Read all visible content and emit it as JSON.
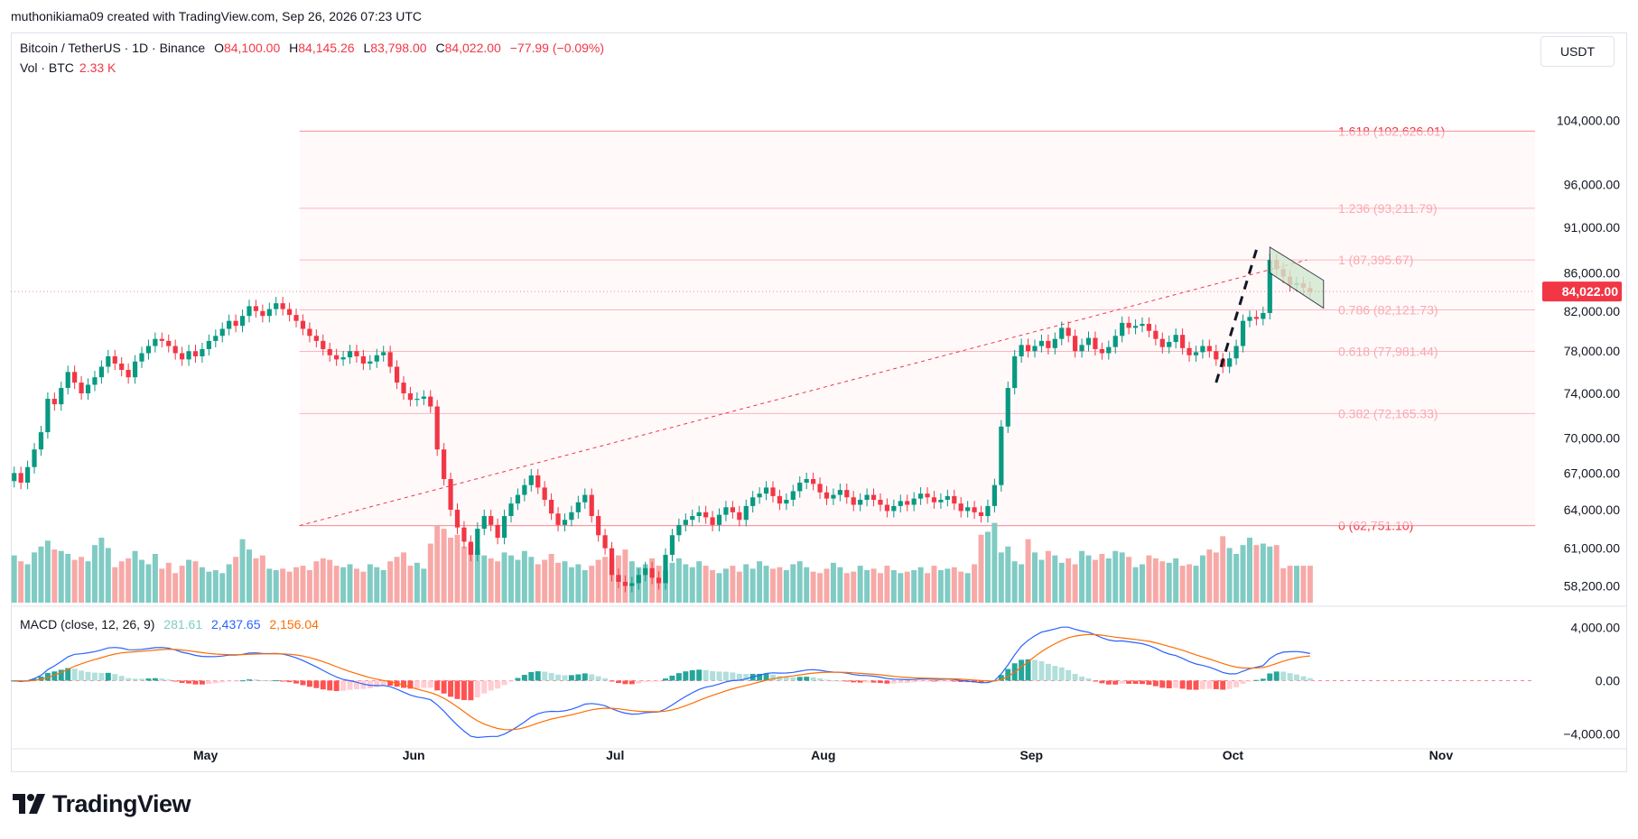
{
  "header": {
    "credit": "muthonikiama09 created with TradingView.com, Sep 26, 2026 07:23 UTC"
  },
  "legend": {
    "symbol": "Bitcoin / TetherUS · 1D · Binance",
    "o_label": "O",
    "o_value": "84,100.00",
    "h_label": "H",
    "h_value": "84,145.26",
    "l_label": "L",
    "l_value": "83,798.00",
    "c_label": "C",
    "c_value": "84,022.00",
    "change": "−77.99 (−0.09%)",
    "vol_label": "Vol · BTC",
    "vol_value": "2.33 K"
  },
  "macd_legend": {
    "title": "MACD (close, 12, 26, 9)",
    "hist": "281.61",
    "macd": "2,437.65",
    "signal": "2,156.04"
  },
  "currency_button": "USDT",
  "logo_text": "TradingView",
  "colors": {
    "up": "#089981",
    "down": "#f23645",
    "up_vol": "#80cbc4",
    "down_vol": "#f7a9a7",
    "fib": "#f23645",
    "macd": "#2962ff",
    "signal": "#ff6d00",
    "channel": "#d1ead0"
  },
  "chart_data": [
    {
      "type": "candlestick",
      "title": "Bitcoin / TetherUS · 1D · Binance",
      "x_tick_labels": [
        "May",
        "Jun",
        "Jul",
        "Aug",
        "Sep",
        "Oct",
        "Nov"
      ],
      "y_tick_labels": [
        "104,000.00",
        "96,000.00",
        "91,000.00",
        "86,000.00",
        "82,000.00",
        "78,000.00",
        "74,000.00",
        "70,000.00",
        "67,000.00",
        "64,000.00",
        "61,000.00",
        "58,200.00"
      ],
      "y_scale": "log",
      "ylim": [
        57000,
        108000
      ],
      "last_price_label": "84,022.00",
      "last_price": 84022,
      "fib_levels": [
        {
          "ratio": "0",
          "price": 62751.1,
          "label": "0 (62,751.10)"
        },
        {
          "ratio": "0.382",
          "price": 72165.33,
          "label": "0.382 (72,165.33)"
        },
        {
          "ratio": "0.618",
          "price": 77981.44,
          "label": "0.618 (77,981.44)"
        },
        {
          "ratio": "0.786",
          "price": 82121.73,
          "label": "0.786 (82,121.73)"
        },
        {
          "ratio": "1",
          "price": 87395.67,
          "label": "1 (87,395.67)"
        },
        {
          "ratio": "1.236",
          "price": 93211.79,
          "label": "1.236 (93,211.79)"
        },
        {
          "ratio": "1.618",
          "price": 102626.01,
          "label": "1.618 (102,626.01)"
        }
      ],
      "trendline": {
        "from": {
          "date": "2026-05-15",
          "price": 62751
        },
        "to": {
          "date": "2026-10-12",
          "price": 87396
        }
      },
      "closes": [
        67000,
        66200,
        67500,
        69000,
        70500,
        73500,
        73000,
        74500,
        76000,
        75000,
        74000,
        74800,
        75500,
        76500,
        77500,
        76800,
        76200,
        75500,
        77000,
        77800,
        78500,
        79200,
        79000,
        78500,
        77800,
        77200,
        78000,
        77500,
        78200,
        79000,
        79500,
        80200,
        81000,
        80500,
        81500,
        82500,
        82000,
        81500,
        82200,
        82800,
        82200,
        81600,
        81000,
        80200,
        79500,
        79000,
        78200,
        77600,
        77200,
        77400,
        78000,
        77500,
        76800,
        77000,
        77600,
        77900,
        76500,
        75000,
        74000,
        73400,
        73500,
        73700,
        72800,
        69000,
        66500,
        64000,
        62600,
        61500,
        60500,
        62500,
        63500,
        62800,
        61800,
        63500,
        64500,
        65200,
        66000,
        66800,
        65800,
        64800,
        63700,
        62800,
        63200,
        63800,
        64600,
        65200,
        63500,
        62000,
        61000,
        59000,
        58500,
        58200,
        58400,
        59000,
        59500,
        58800,
        58400,
        60500,
        62000,
        62800,
        63200,
        63500,
        63800,
        63400,
        62800,
        63600,
        64200,
        63800,
        63200,
        64300,
        65000,
        65300,
        65800,
        65100,
        64500,
        64800,
        65500,
        66200,
        66500,
        66100,
        65400,
        64900,
        65200,
        65600,
        65000,
        64400,
        64800,
        65200,
        64800,
        64400,
        63900,
        64300,
        64700,
        64400,
        64900,
        65300,
        65000,
        64600,
        64800,
        65100,
        64500,
        63900,
        64200,
        63800,
        63500,
        64300,
        66000,
        71000,
        74500,
        77500,
        78600,
        78000,
        78500,
        79000,
        78300,
        79200,
        80300,
        79500,
        78000,
        78600,
        79300,
        78200,
        77800,
        78400,
        79500,
        80800,
        80300,
        80500,
        80700,
        80000,
        79200,
        78400,
        78900,
        79600,
        78300,
        77600,
        77900,
        78500,
        78000,
        77200,
        76500,
        77300,
        78500,
        81000,
        81400,
        81200,
        81800,
        87400,
        86400,
        85600,
        84700,
        84900,
        84400,
        84022
      ],
      "volumes_K": [
        3.2,
        2.8,
        2.6,
        3.4,
        3.8,
        4.2,
        3.6,
        3.5,
        3.3,
        2.9,
        3.1,
        2.8,
        3.9,
        4.4,
        3.7,
        2.4,
        2.8,
        3.0,
        3.5,
        2.9,
        2.6,
        3.3,
        2.3,
        2.7,
        2.0,
        2.5,
        2.9,
        2.8,
        2.4,
        2.1,
        2.2,
        2.0,
        2.6,
        3.1,
        4.3,
        3.6,
        3.0,
        3.2,
        2.3,
        2.2,
        2.3,
        2.1,
        2.4,
        2.5,
        2.2,
        2.8,
        3.0,
        2.9,
        2.5,
        2.4,
        2.6,
        2.3,
        2.1,
        2.6,
        2.4,
        2.2,
        2.8,
        3.1,
        3.4,
        2.5,
        2.7,
        2.3,
        4.0,
        5.2,
        5.0,
        4.4,
        4.6,
        3.8,
        4.0,
        3.6,
        3.2,
        3.0,
        2.8,
        3.4,
        3.2,
        2.9,
        3.5,
        3.1,
        2.6,
        2.9,
        3.3,
        2.7,
        2.8,
        2.4,
        2.6,
        2.2,
        2.5,
        2.9,
        3.1,
        3.0,
        3.2,
        3.6,
        2.8,
        2.4,
        2.6,
        3.0,
        2.5,
        2.2,
        2.7,
        3.0,
        2.6,
        2.4,
        2.8,
        2.5,
        2.2,
        2.0,
        2.3,
        2.5,
        2.1,
        2.6,
        2.3,
        2.8,
        2.5,
        2.3,
        2.4,
        2.2,
        2.6,
        2.8,
        2.4,
        2.1,
        2.0,
        2.3,
        2.7,
        2.4,
        2.0,
        2.1,
        2.5,
        2.2,
        2.3,
        2.0,
        2.5,
        2.2,
        2.0,
        2.1,
        2.2,
        2.4,
        2.0,
        2.5,
        2.2,
        2.3,
        2.4,
        2.1,
        2.0,
        2.6,
        4.6,
        4.8,
        5.4,
        3.4,
        3.8,
        2.8,
        2.6,
        4.3,
        3.4,
        2.9,
        3.5,
        3.2,
        2.7,
        3.0,
        2.6,
        3.5,
        3.2,
        2.9,
        3.3,
        3.0,
        3.5,
        3.4,
        3.1,
        2.4,
        2.6,
        3.2,
        3.0,
        2.8,
        2.7,
        3.0,
        2.5,
        2.6,
        2.5,
        3.2,
        3.6,
        3.4,
        4.5,
        3.7,
        3.3,
        3.9,
        4.4,
        3.9,
        4.0,
        3.8,
        3.9,
        2.33
      ],
      "volume_ylim_K": [
        0,
        5.5
      ],
      "start_date": "2026-04-02",
      "end_date": "2026-11-15"
    },
    {
      "type": "macd",
      "title": "MACD (close, 12, 26, 9)",
      "y_tick_labels": [
        "4,000.00",
        "0.00",
        "−4,000.00"
      ],
      "ylim": [
        -5000,
        5200
      ],
      "macd_last": 2437.65,
      "signal_last": 2156.04,
      "hist_last": 281.61
    }
  ]
}
